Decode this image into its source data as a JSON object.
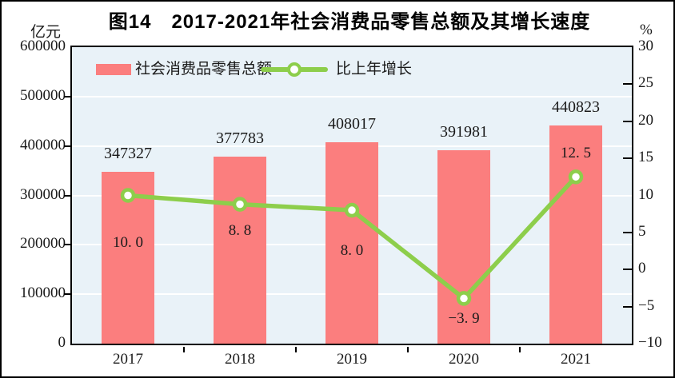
{
  "figure": {
    "title": "图14　2017-2021年社会消费品零售总额及其增长速度",
    "left_unit": "亿元",
    "right_unit": "%"
  },
  "chart_data": {
    "type": "bar",
    "subtype": "bar-with-line-dual-axis",
    "categories": [
      "2017",
      "2018",
      "2019",
      "2020",
      "2021"
    ],
    "series": [
      {
        "name": "社会消费品零售总额",
        "type": "bar",
        "axis": "left",
        "values": [
          347327,
          377783,
          408017,
          391981,
          440823
        ],
        "labels": [
          "347327",
          "377783",
          "408017",
          "391981",
          "440823"
        ],
        "color": "#fb7e7e"
      },
      {
        "name": "比上年增长",
        "type": "line",
        "axis": "right",
        "values": [
          10.0,
          8.8,
          8.0,
          -3.9,
          12.5
        ],
        "labels": [
          "10. 0",
          "8. 8",
          "8. 0",
          "−3. 9",
          "12. 5"
        ],
        "color": "#8dce4b",
        "marker": "circle-white-fill"
      }
    ],
    "left_axis": {
      "min": 0,
      "max": 600000,
      "step": 100000,
      "tick_labels": [
        "600000",
        "500000",
        "400000",
        "300000",
        "200000",
        "100000",
        "0"
      ],
      "tick_values": [
        600000,
        500000,
        400000,
        300000,
        200000,
        100000,
        0
      ]
    },
    "right_axis": {
      "min": -10,
      "max": 30,
      "step": 5,
      "tick_labels": [
        "30",
        "25",
        "20",
        "15",
        "10",
        "5",
        "0",
        "−5",
        "−10"
      ],
      "tick_values": [
        30,
        25,
        20,
        15,
        10,
        5,
        0,
        -5,
        -10
      ]
    },
    "grid": "horizontal-white-lines-at-left-axis-ticks",
    "legend_position": "top-left-inside-plot",
    "plot_bg_color": "#e9f2f8",
    "growth_label_dy": [
      48,
      22,
      40,
      15,
      -40
    ]
  }
}
